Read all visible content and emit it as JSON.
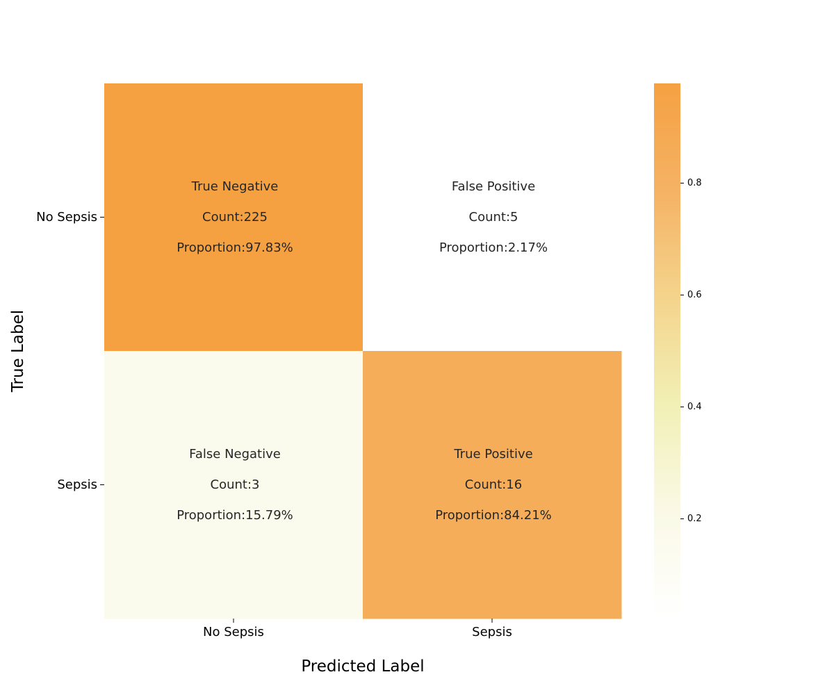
{
  "chart_data": {
    "type": "heatmap",
    "title": "",
    "xlabel": "Predicted Label",
    "ylabel": "True Label",
    "x_categories": [
      "No Sepsis",
      "Sepsis"
    ],
    "y_categories": [
      "No Sepsis",
      "Sepsis"
    ],
    "values": [
      [
        0.9783,
        0.0217
      ],
      [
        0.1579,
        0.8421
      ]
    ],
    "cells": [
      [
        {
          "name": "True Negative",
          "count": "Count:225",
          "proportion": "Proportion:97.83%"
        },
        {
          "name": "False Positive",
          "count": "Count:5",
          "proportion": "Proportion:2.17%"
        }
      ],
      [
        {
          "name": "False Negative",
          "count": "Count:3",
          "proportion": "Proportion:15.79%"
        },
        {
          "name": "True Positive",
          "count": "Count:16",
          "proportion": "Proportion:84.21%"
        }
      ]
    ],
    "colorbar": {
      "range": [
        0.0217,
        0.9783
      ],
      "ticks": [
        0.2,
        0.4,
        0.6,
        0.8
      ],
      "tick_labels": [
        "0.2",
        "0.4",
        "0.6",
        "0.8"
      ],
      "colormap": [
        "#ffffff",
        "#faf9e6",
        "#f1f0b5",
        "#f4d48c",
        "#f5b264",
        "#f5a142"
      ]
    },
    "grid": false,
    "legend": "colorbar-right"
  }
}
